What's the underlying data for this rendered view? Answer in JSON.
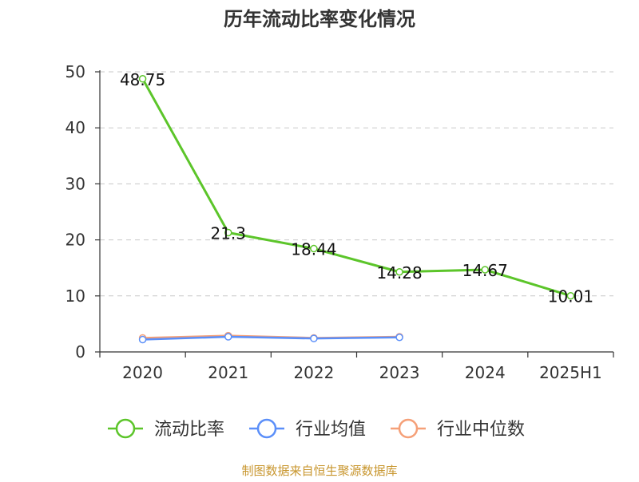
{
  "chart_data": {
    "type": "line",
    "title": "历年流动比率变化情况",
    "categories": [
      "2020",
      "2021",
      "2022",
      "2023",
      "2024",
      "2025H1"
    ],
    "y_ticks": [
      0,
      10,
      20,
      30,
      40,
      50
    ],
    "ylim": [
      0,
      50
    ],
    "grid": true,
    "legend_position": "bottom",
    "series": [
      {
        "name": "流动比率",
        "color": "#5cc52a",
        "values": [
          48.75,
          21.3,
          18.44,
          14.28,
          14.67,
          10.01
        ],
        "labels": [
          "48.75",
          "21.3",
          "18.44",
          "14.28",
          "14.67",
          "10.01"
        ]
      },
      {
        "name": "行业均值",
        "color": "#5b8ff9",
        "values": [
          2.2,
          2.7,
          2.4,
          2.6,
          null,
          null
        ]
      },
      {
        "name": "行业中位数",
        "color": "#f5a078",
        "values": [
          2.5,
          2.9,
          2.5,
          2.7,
          null,
          null
        ]
      }
    ]
  },
  "footer": {
    "source": "制图数据来自恒生聚源数据库"
  }
}
